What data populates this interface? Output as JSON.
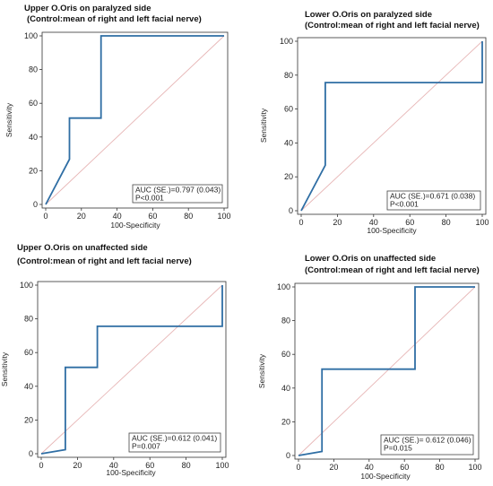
{
  "chart_data": [
    {
      "type": "line",
      "title": "Upper O.Oris on paralyzed side",
      "subtitle": "(Control:mean of right and left facial nerve)",
      "xlabel": "100-Specificity",
      "ylabel": "Sensitivity",
      "xlim": [
        0,
        100
      ],
      "ylim": [
        0,
        100
      ],
      "xticks": [
        "0",
        "20",
        "40",
        "60",
        "80",
        "100"
      ],
      "yticks": [
        "0",
        "20",
        "40",
        "60",
        "80",
        "100"
      ],
      "series": [
        {
          "color": "#2f6ea4",
          "x": [
            0,
            13.3,
            13.3,
            31,
            31,
            100
          ],
          "y": [
            0,
            26.8,
            51.2,
            51.2,
            100,
            100
          ]
        },
        {
          "color": "#e7b6b6",
          "x": [
            0,
            100
          ],
          "y": [
            0,
            100
          ]
        }
      ],
      "annotation": [
        "AUC (SE.)=0.797 (0.043)",
        "P<0.001"
      ]
    },
    {
      "type": "line",
      "title": "Lower O.Oris on paralyzed side",
      "subtitle": "(Control:mean of right and left facial nerve)",
      "xlabel": "100-Specificity",
      "ylabel": "Sensitivity",
      "xlim": [
        0,
        100
      ],
      "ylim": [
        0,
        100
      ],
      "xticks": [
        "0",
        "20",
        "40",
        "60",
        "80",
        "100"
      ],
      "yticks": [
        "0",
        "20",
        "40",
        "60",
        "80",
        "100"
      ],
      "series": [
        {
          "color": "#2f6ea4",
          "x": [
            0,
            13.3,
            13.3,
            100,
            100
          ],
          "y": [
            0,
            26.8,
            75.6,
            75.6,
            100
          ]
        },
        {
          "color": "#e7b6b6",
          "x": [
            0,
            100
          ],
          "y": [
            0,
            100
          ]
        }
      ],
      "annotation": [
        "AUC (SE.)=0.671 (0.038)",
        "P<0.001"
      ]
    },
    {
      "type": "line",
      "title": "Upper O.Oris on unaffected side",
      "subtitle": "(Control:mean of right and left facial nerve)",
      "xlabel": "100-Specificity",
      "ylabel": "Sensitivity",
      "xlim": [
        0,
        100
      ],
      "ylim": [
        0,
        100
      ],
      "xticks": [
        "0",
        "20",
        "40",
        "60",
        "80",
        "100"
      ],
      "yticks": [
        "0",
        "20",
        "40",
        "60",
        "80",
        "100"
      ],
      "series": [
        {
          "color": "#2f6ea4",
          "x": [
            0,
            13.3,
            13.3,
            31,
            31,
            100,
            100
          ],
          "y": [
            0,
            2.4,
            51.2,
            51.2,
            75.6,
            75.6,
            100
          ]
        },
        {
          "color": "#e7b6b6",
          "x": [
            0,
            100
          ],
          "y": [
            0,
            100
          ]
        }
      ],
      "annotation": [
        "AUC (SE.)=0.612 (0.041)",
        "P=0.007"
      ]
    },
    {
      "type": "line",
      "title": "Lower O.Oris on unaffected side",
      "subtitle": "(Control:mean of right and left facial nerve)",
      "xlabel": "100-Specificity",
      "ylabel": "Sensitivity",
      "xlim": [
        0,
        100
      ],
      "ylim": [
        0,
        100
      ],
      "xticks": [
        "0",
        "20",
        "40",
        "60",
        "80",
        "100"
      ],
      "yticks": [
        "0",
        "20",
        "40",
        "60",
        "80",
        "100"
      ],
      "series": [
        {
          "color": "#2f6ea4",
          "x": [
            0,
            13.3,
            13.3,
            66,
            66,
            100
          ],
          "y": [
            0,
            2.4,
            51.2,
            51.2,
            100,
            100
          ]
        },
        {
          "color": "#e7b6b6",
          "x": [
            0,
            100
          ],
          "y": [
            0,
            100
          ]
        }
      ],
      "annotation": [
        "AUC (SE.)= 0.612 (0.046)",
        "P=0.015"
      ]
    }
  ]
}
